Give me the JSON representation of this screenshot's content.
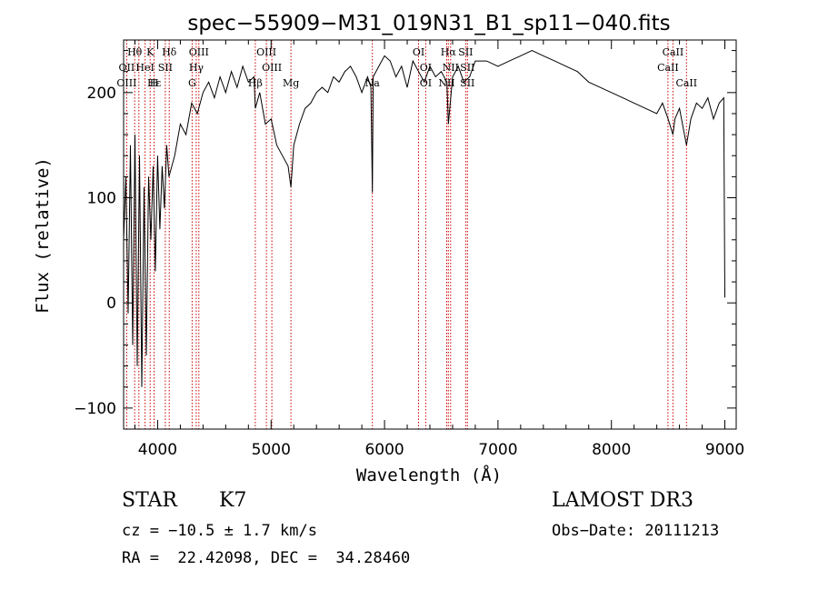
{
  "chart_data": {
    "type": "line",
    "title": "spec−55909−M31_019N31_B1_sp11−040.fits",
    "xlabel": "Wavelength (Å)",
    "ylabel": "Flux (relative)",
    "xlim": [
      3700,
      9100
    ],
    "ylim": [
      -120,
      250
    ],
    "xticks": [
      4000,
      5000,
      6000,
      7000,
      8000,
      9000
    ],
    "yticks": [
      -100,
      0,
      100,
      200
    ],
    "xtick_labels": [
      "4000",
      "5000",
      "6000",
      "7000",
      "8000",
      "9000"
    ],
    "ytick_labels": [
      "−100",
      "0",
      "100",
      "200"
    ],
    "series": [
      {
        "name": "flux",
        "x": [
          3700,
          3720,
          3740,
          3760,
          3780,
          3800,
          3820,
          3840,
          3860,
          3880,
          3900,
          3920,
          3940,
          3960,
          3980,
          4000,
          4020,
          4040,
          4060,
          4080,
          4100,
          4150,
          4200,
          4250,
          4300,
          4350,
          4400,
          4450,
          4500,
          4550,
          4600,
          4650,
          4700,
          4750,
          4800,
          4850,
          4861,
          4900,
          4950,
          5000,
          5050,
          5100,
          5150,
          5175,
          5200,
          5250,
          5300,
          5350,
          5400,
          5450,
          5500,
          5550,
          5600,
          5650,
          5700,
          5750,
          5800,
          5850,
          5880,
          5893,
          5900,
          5950,
          6000,
          6050,
          6100,
          6150,
          6200,
          6250,
          6300,
          6350,
          6400,
          6450,
          6500,
          6550,
          6563,
          6600,
          6650,
          6700,
          6750,
          6800,
          6900,
          7000,
          7100,
          7200,
          7300,
          7400,
          7500,
          7600,
          7700,
          7800,
          7900,
          8000,
          8100,
          8200,
          8300,
          8400,
          8450,
          8500,
          8542,
          8560,
          8600,
          8662,
          8700,
          8750,
          8800,
          8850,
          8900,
          8950,
          8990,
          9000
        ],
        "y": [
          60,
          120,
          -10,
          150,
          -40,
          160,
          -60,
          140,
          -80,
          110,
          -50,
          120,
          60,
          130,
          30,
          140,
          70,
          130,
          90,
          150,
          120,
          140,
          170,
          160,
          190,
          180,
          200,
          210,
          195,
          215,
          200,
          220,
          205,
          225,
          210,
          215,
          185,
          200,
          170,
          175,
          150,
          140,
          130,
          110,
          150,
          170,
          185,
          190,
          200,
          205,
          200,
          215,
          210,
          220,
          225,
          215,
          200,
          215,
          205,
          105,
          215,
          225,
          235,
          230,
          215,
          225,
          205,
          230,
          220,
          210,
          225,
          215,
          220,
          210,
          170,
          215,
          225,
          210,
          215,
          230,
          230,
          225,
          230,
          235,
          240,
          235,
          230,
          225,
          220,
          210,
          205,
          200,
          195,
          190,
          185,
          180,
          190,
          175,
          160,
          175,
          185,
          150,
          175,
          190,
          185,
          195,
          175,
          190,
          195,
          5
        ]
      }
    ],
    "line_labels": [
      {
        "text": "Hθ",
        "wavelength": 3798,
        "row": 1
      },
      {
        "text": "K",
        "wavelength": 3934,
        "row": 1
      },
      {
        "text": "Hδ",
        "wavelength": 4102,
        "row": 1
      },
      {
        "text": "OIII",
        "wavelength": 4363,
        "row": 1
      },
      {
        "text": "OIII",
        "wavelength": 4959,
        "row": 1
      },
      {
        "text": "OI",
        "wavelength": 6300,
        "row": 1
      },
      {
        "text": "Hα",
        "wavelength": 6563,
        "row": 1
      },
      {
        "text": "SII",
        "wavelength": 6716,
        "row": 1
      },
      {
        "text": "CaII",
        "wavelength": 8542,
        "row": 1
      },
      {
        "text": "OII",
        "wavelength": 3727,
        "row": 2
      },
      {
        "text": "HeI",
        "wavelength": 3889,
        "row": 2
      },
      {
        "text": "SII",
        "wavelength": 4068,
        "row": 2
      },
      {
        "text": "Hγ",
        "wavelength": 4340,
        "row": 2
      },
      {
        "text": "OIII",
        "wavelength": 5007,
        "row": 2
      },
      {
        "text": "OI",
        "wavelength": 6363,
        "row": 2
      },
      {
        "text": "NII",
        "wavelength": 6583,
        "row": 2
      },
      {
        "text": "SII",
        "wavelength": 6731,
        "row": 2
      },
      {
        "text": "CaII",
        "wavelength": 8498,
        "row": 2
      },
      {
        "text": "OIII",
        "wavelength": 3727,
        "row": 3
      },
      {
        "text": "Hε",
        "wavelength": 3970,
        "row": 3
      },
      {
        "text": "H",
        "wavelength": 3968,
        "row": 3
      },
      {
        "text": "G",
        "wavelength": 4304,
        "row": 3
      },
      {
        "text": "Hβ",
        "wavelength": 4861,
        "row": 3
      },
      {
        "text": "Mg",
        "wavelength": 5175,
        "row": 3
      },
      {
        "text": "Na",
        "wavelength": 5893,
        "row": 3
      },
      {
        "text": "OI",
        "wavelength": 6363,
        "row": 3
      },
      {
        "text": "NII",
        "wavelength": 6548,
        "row": 3
      },
      {
        "text": "SII",
        "wavelength": 6731,
        "row": 3
      },
      {
        "text": "CaII",
        "wavelength": 8662,
        "row": 3
      }
    ],
    "line_markers": [
      3727,
      3798,
      3835,
      3889,
      3934,
      3968,
      4068,
      4102,
      4304,
      4340,
      4363,
      4861,
      4959,
      5007,
      5175,
      5893,
      6300,
      6363,
      6548,
      6563,
      6583,
      6716,
      6731,
      8498,
      8542,
      8662
    ],
    "line_marker_color": "#cc0000"
  },
  "info": {
    "object_type": "STAR",
    "subclass": "K7",
    "survey": "LAMOST DR3",
    "redshift": "cz = −10.5 ± 1.7 km/s",
    "obs_date": "Obs−Date: 20111213",
    "coords": "RA =  22.42098, DEC =  34.28460"
  }
}
